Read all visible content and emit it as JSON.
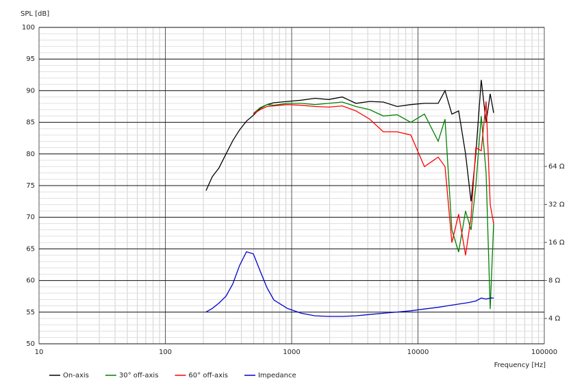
{
  "chart_data": {
    "type": "line",
    "y_label": "SPL [dB]",
    "x_label": "Frequency [Hz]",
    "xlog": true,
    "y2log": true,
    "grid": true,
    "minor_grid": true,
    "xlim": [
      10,
      100000
    ],
    "xticks": [
      10,
      100,
      1000,
      10000,
      100000
    ],
    "ylim": [
      50,
      100
    ],
    "yticks": [
      50,
      55,
      60,
      65,
      70,
      75,
      80,
      85,
      90,
      95,
      100
    ],
    "y2lim": [
      2.52,
      806
    ],
    "y2ticks": [
      {
        "value": 4,
        "label": "4 Ω"
      },
      {
        "value": 8,
        "label": "8 Ω"
      },
      {
        "value": 16,
        "label": "16 Ω"
      },
      {
        "value": 32,
        "label": "32 Ω"
      },
      {
        "value": 64,
        "label": "64 Ω"
      }
    ],
    "legend": "bottom",
    "x": [
      210,
      235,
      266,
      302,
      342,
      387,
      439,
      497,
      563,
      638,
      723,
      927,
      1191,
      1528,
      1962,
      2518,
      3230,
      4150,
      5320,
      6840,
      8770,
      11250,
      14450,
      16370,
      18540,
      21000,
      23800,
      26300,
      28700,
      31700,
      34600,
      37300,
      39700
    ],
    "series": [
      {
        "name": "On-axis",
        "color": "#000000",
        "values": [
          74.2,
          76.4,
          77.8,
          80,
          82.1,
          83.8,
          85.2,
          86.1,
          87.2,
          87.8,
          88.1,
          88.3,
          88.5,
          88.8,
          88.6,
          89,
          88,
          88.3,
          88.2,
          87.5,
          87.8,
          88,
          88,
          90,
          86.3,
          86.8,
          80,
          72.5,
          80,
          91.7,
          85,
          89.5,
          86.5
        ]
      },
      {
        "name": "30° off-axis",
        "color": "#008000",
        "values": [
          null,
          null,
          null,
          null,
          null,
          null,
          null,
          86.4,
          87.3,
          87.8,
          87.7,
          88,
          88,
          87.8,
          88,
          88.2,
          87.5,
          87,
          86,
          86.2,
          85,
          86.3,
          82,
          85.5,
          68,
          64.5,
          71,
          68,
          75,
          86,
          77,
          55.5,
          69
        ]
      },
      {
        "name": "60° off-axis",
        "color": "#ff0000",
        "values": [
          null,
          null,
          null,
          null,
          null,
          null,
          null,
          86.3,
          87,
          87.5,
          87.6,
          87.8,
          87.7,
          87.5,
          87.4,
          87.6,
          86.8,
          85.5,
          83.5,
          83.5,
          83,
          78,
          79.5,
          78,
          66,
          70.5,
          64,
          70,
          81,
          80.5,
          88.3,
          72,
          69
        ]
      },
      {
        "name": "Impedance",
        "color": "#0000cc",
        "axis": "y2",
        "values": [
          4.5,
          4.8,
          5.3,
          6.0,
          7.5,
          10.5,
          13.5,
          13.0,
          9.5,
          7.0,
          5.6,
          4.8,
          4.4,
          4.2,
          4.15,
          4.15,
          4.2,
          4.3,
          4.4,
          4.5,
          4.6,
          4.75,
          4.9,
          5.0,
          5.1,
          5.2,
          5.3,
          5.4,
          5.5,
          5.8,
          5.7,
          5.8,
          5.8
        ]
      }
    ]
  }
}
